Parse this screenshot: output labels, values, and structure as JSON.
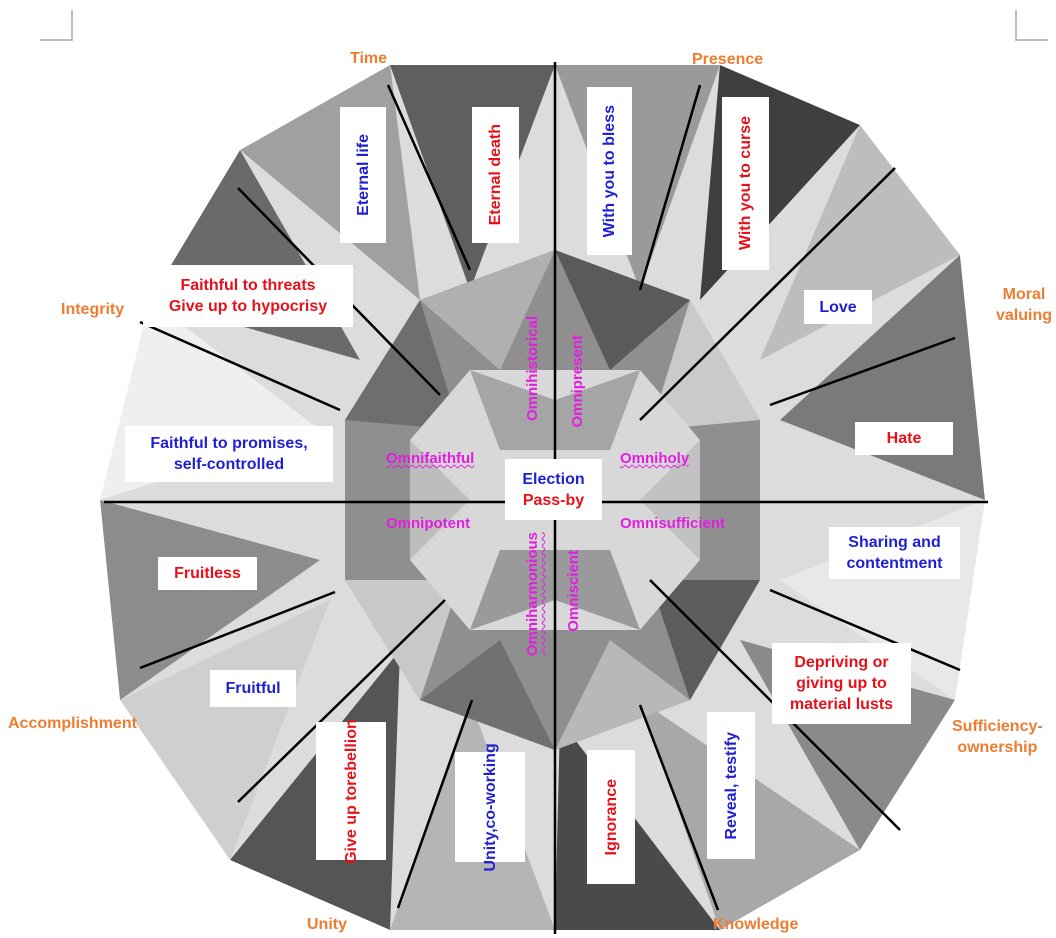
{
  "categories": {
    "time": "Time",
    "presence": "Presence",
    "moral_valuing": [
      "Moral",
      "valuing"
    ],
    "integrity": "Integrity",
    "accomplishment": "Accomplishment",
    "sufficiency_ownership": [
      "Sufficiency-",
      "ownership"
    ],
    "unity": "Unity",
    "knowledge": "Knowledge"
  },
  "center": {
    "election": "Election",
    "pass_by": "Pass-by"
  },
  "attributes": {
    "omnihistorical": "Omnihistorical",
    "omnipresent": "Omnipresent",
    "omnifaithful": "Omnifaithful",
    "omniholy": "Omniholy",
    "omnipotent": "Omnipotent",
    "omnisufficient": "Omnisufficient",
    "omniharmonious": "Omniharmonious",
    "omniscient": "Omniscient"
  },
  "labels": {
    "eternal_life": "Eternal life",
    "eternal_death": "Eternal death",
    "with_you_to_bless": "With you to bless",
    "with_you_to_curse": "With you to curse",
    "love": "Love",
    "hate": "Hate",
    "faithful_threats": [
      "Faithful to threats",
      "Give up to hypocrisy"
    ],
    "faithful_promises": [
      "Faithful to promises,",
      "self-controlled"
    ],
    "sharing": [
      "Sharing and",
      "contentment"
    ],
    "fruitless": "Fruitless",
    "fruitful": "Fruitful",
    "depriving": [
      "Depriving or",
      "giving up to",
      "material lusts"
    ],
    "rebellion": [
      "Give up to",
      "rebellion"
    ],
    "unity_coworking": [
      "Unity,",
      "co-working"
    ],
    "ignorance": "Ignorance",
    "reveal": "Reveal, testify"
  },
  "colors": {
    "blue": "#1f1fd6",
    "red": "#e8111a",
    "orange": "#ed7d31",
    "magenta": "#e21fe0"
  }
}
